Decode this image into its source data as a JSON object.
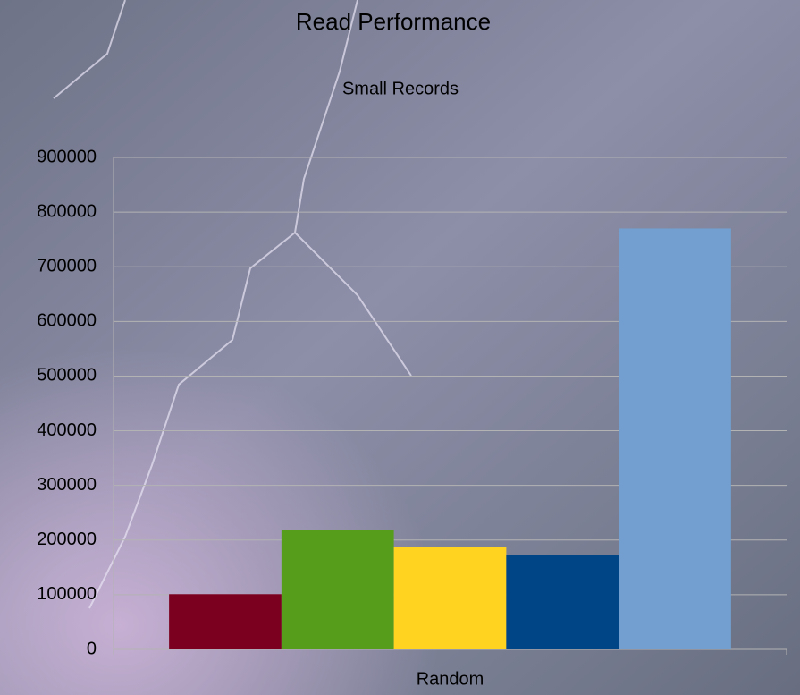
{
  "chart_data": {
    "type": "bar",
    "title": "Read Performance",
    "subtitle": "Small Records",
    "categories": [
      "Random"
    ],
    "series": [
      {
        "color": "#7b0020",
        "values": [
          101000
        ]
      },
      {
        "color": "#579d1c",
        "values": [
          219000
        ]
      },
      {
        "color": "#ffd320",
        "values": [
          188000
        ]
      },
      {
        "color": "#004586",
        "values": [
          173000
        ]
      },
      {
        "color": "#729fcf",
        "values": [
          770000
        ]
      }
    ],
    "ylim": [
      0,
      900000
    ],
    "yticks": [
      0,
      100000,
      200000,
      300000,
      400000,
      500000,
      600000,
      700000,
      800000,
      900000
    ],
    "grid": true
  }
}
